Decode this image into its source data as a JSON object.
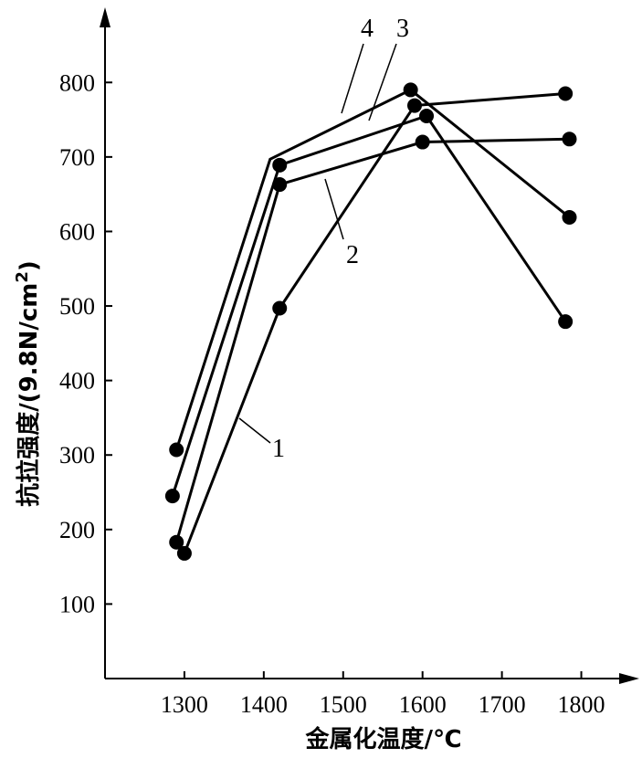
{
  "chart_data": {
    "type": "line",
    "title": "",
    "xlabel": "金属化温度/℃",
    "ylabel_main": "抗拉强度/(9.8N/cm",
    "ylabel_sup": "2",
    "ylabel_close": ")",
    "xlim": [
      1200,
      1850
    ],
    "ylim": [
      0,
      880
    ],
    "x_ticks": [
      1300,
      1400,
      1500,
      1600,
      1700,
      1800
    ],
    "x_tick_labels": [
      "1300",
      "1400",
      "1500",
      "1600",
      "1700",
      "1800"
    ],
    "y_ticks": [
      100,
      200,
      300,
      400,
      500,
      600,
      700,
      800
    ],
    "y_tick_labels": [
      "100",
      "200",
      "300",
      "400",
      "500",
      "600",
      "700",
      "800"
    ],
    "grid": false,
    "series": [
      {
        "label": "1",
        "points": [
          [
            1300,
            168
          ],
          [
            1420,
            497
          ],
          [
            1590,
            769
          ],
          [
            1780,
            785
          ]
        ],
        "markers": [
          true,
          true,
          true,
          true
        ]
      },
      {
        "label": "2",
        "points": [
          [
            1290,
            183
          ],
          [
            1420,
            663
          ],
          [
            1600,
            720
          ],
          [
            1785,
            724
          ]
        ],
        "markers": [
          true,
          true,
          true,
          true
        ]
      },
      {
        "label": "3",
        "points": [
          [
            1285,
            245
          ],
          [
            1420,
            689
          ],
          [
            1605,
            755
          ],
          [
            1780,
            479
          ]
        ],
        "markers": [
          true,
          true,
          true,
          true
        ]
      },
      {
        "label": "4",
        "points": [
          [
            1290,
            307
          ],
          [
            1408,
            697
          ],
          [
            1585,
            790
          ],
          [
            1785,
            619
          ]
        ],
        "markers": [
          true,
          false,
          true,
          true
        ]
      }
    ],
    "series_labels": [
      {
        "text": "1",
        "series": 0
      },
      {
        "text": "2",
        "series": 1
      },
      {
        "text": "3",
        "series": 2
      },
      {
        "text": "4",
        "series": 3
      }
    ]
  }
}
